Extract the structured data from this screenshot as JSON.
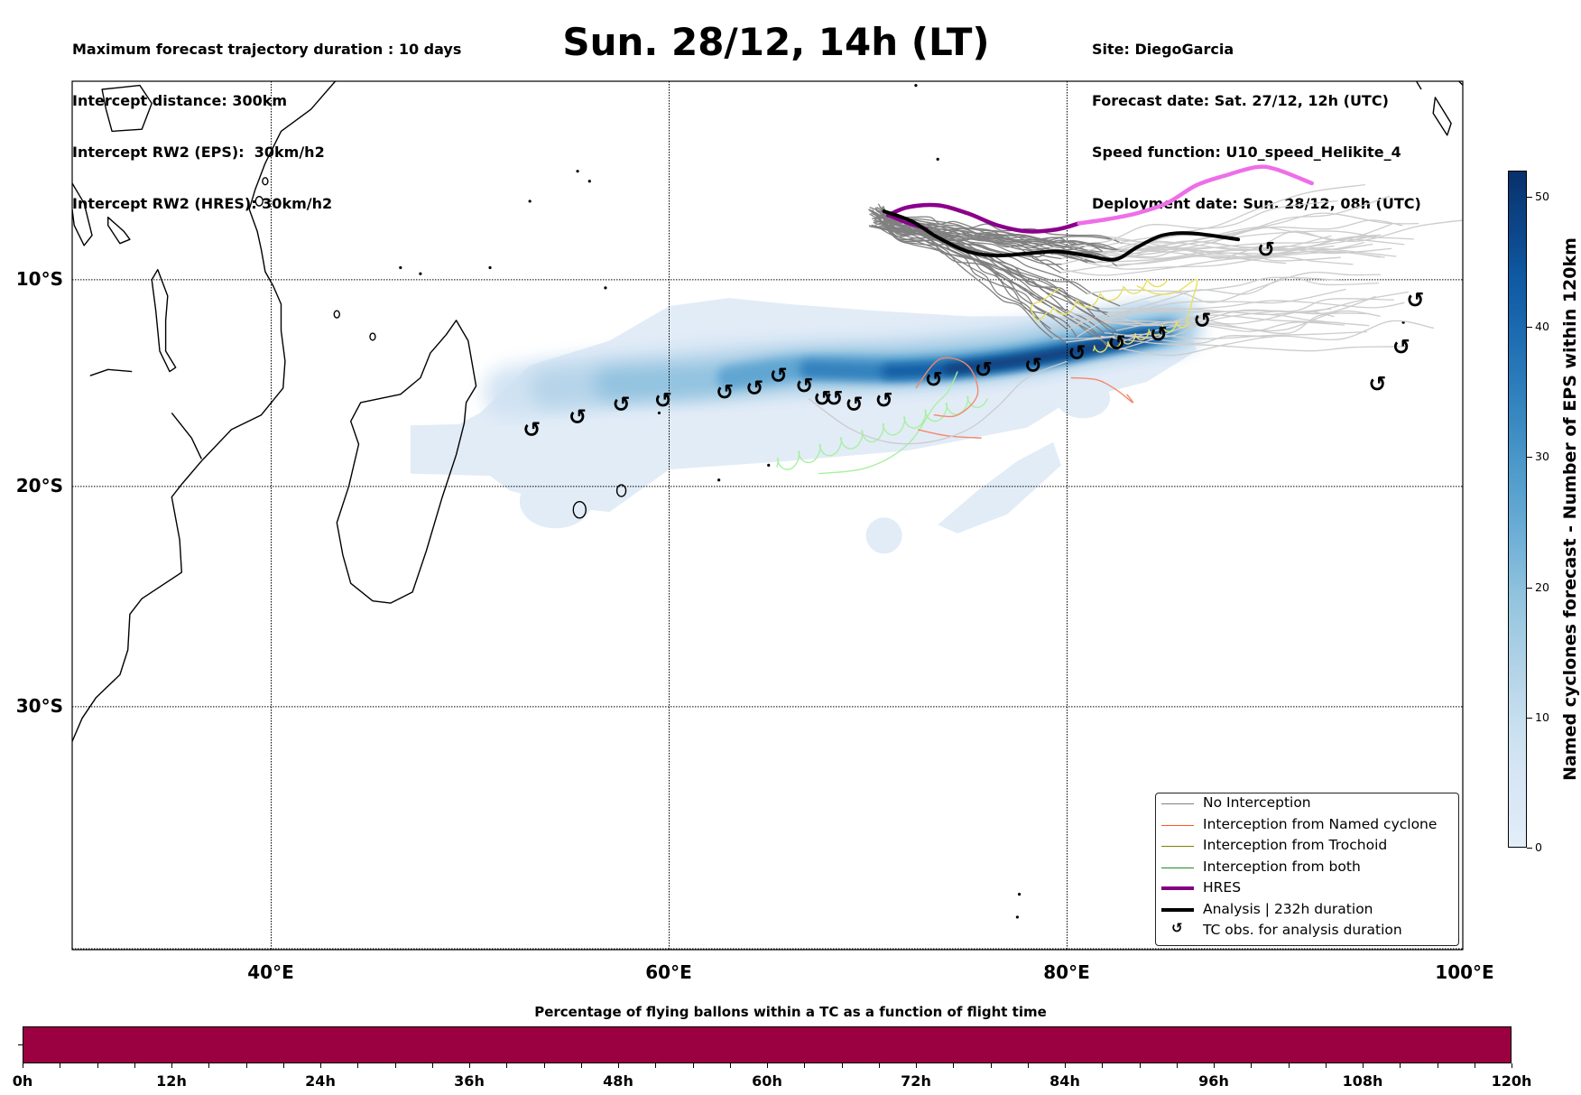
{
  "header": {
    "left_lines": [
      "Maximum forecast trajectory duration : 10 days",
      "Intercept distance: 300km",
      "Intercept RW2 (EPS):  30km/h2",
      "Intercept RW2 (HRES): 30km/h2"
    ],
    "title": "Sun. 28/12, 14h (LT)",
    "right_lines": [
      "Site: DiegoGarcia",
      "Forecast date: Sat. 27/12, 12h (UTC)",
      "Speed function: U10_speed_Helikite_4",
      "Deployment date: Sun. 28/12, 08h (UTC)"
    ]
  },
  "map": {
    "lon_range": [
      30,
      100
    ],
    "lat_range": [
      0,
      -40
    ],
    "lat_ticks": [
      {
        "value": -10,
        "label": "10°S"
      },
      {
        "value": -20,
        "label": "20°S"
      },
      {
        "value": -30,
        "label": "30°S"
      }
    ],
    "lon_ticks": [
      {
        "value": 40,
        "label": "40°E"
      },
      {
        "value": 60,
        "label": "60°E"
      },
      {
        "value": 80,
        "label": "80°E"
      },
      {
        "value": 100,
        "label": "100°E"
      }
    ],
    "colors": {
      "no_interception": "#808080",
      "no_interception_late": "#cccccc",
      "named_cyclone": "#f4886a",
      "trochoid": "#e8e060",
      "both": "#a8f0a0",
      "hres": "#8b008b",
      "hres_late": "#ee6ee8",
      "analysis": "#000000",
      "coast": "#000000"
    }
  },
  "legend": {
    "items": [
      {
        "label": "No Interception",
        "color": "#808080",
        "style": "thin"
      },
      {
        "label": "Interception from Named cyclone",
        "color": "#ff5722",
        "style": "thin"
      },
      {
        "label": "Interception from Trochoid",
        "color": "#808000",
        "style": "thin"
      },
      {
        "label": "Interception from both",
        "color": "#228b22",
        "style": "thin"
      },
      {
        "label": "HRES",
        "color": "#800080",
        "style": "thick"
      },
      {
        "label": "Analysis | 232h duration",
        "color": "#000000",
        "style": "thick"
      },
      {
        "label": "TC obs. for analysis duration",
        "color": "#000000",
        "style": "marker",
        "icon": "↺"
      }
    ]
  },
  "colorbar": {
    "title": "Named cyclones forecast - Number of EPS within 120km",
    "min": 0,
    "max": 52,
    "ticks": [
      "0",
      "10",
      "20",
      "30",
      "40",
      "50"
    ],
    "color_low": "#e3eef9",
    "color_high": "#08306b"
  },
  "pct_bar": {
    "title": "Percentage of flying ballons within a TC as a function of flight time",
    "color": "#9b0040",
    "range_h": [
      0,
      120
    ],
    "ticks": [
      "0h",
      "12h",
      "24h",
      "36h",
      "48h",
      "60h",
      "72h",
      "84h",
      "96h",
      "108h",
      "120h"
    ],
    "minor_step_h": 3
  },
  "chart_data": {
    "type": "map",
    "tc_obs": [
      [
        53.1,
        -17.3
      ],
      [
        55.4,
        -16.7
      ],
      [
        57.6,
        -16.1
      ],
      [
        59.7,
        -15.9
      ],
      [
        62.8,
        -15.5
      ],
      [
        64.3,
        -15.3
      ],
      [
        65.5,
        -14.7
      ],
      [
        66.8,
        -15.2
      ],
      [
        67.7,
        -15.8
      ],
      [
        68.3,
        -15.8
      ],
      [
        69.3,
        -16.1
      ],
      [
        70.8,
        -15.9
      ],
      [
        73.3,
        -14.9
      ],
      [
        75.8,
        -14.4
      ],
      [
        78.3,
        -14.2
      ],
      [
        80.5,
        -13.6
      ],
      [
        82.5,
        -13.1
      ],
      [
        84.6,
        -12.7
      ],
      [
        86.8,
        -12.0
      ],
      [
        90.0,
        -8.5
      ],
      [
        95.6,
        -15.1
      ],
      [
        96.8,
        -13.3
      ],
      [
        97.5,
        -11.0
      ]
    ],
    "hres_track": [
      [
        71.0,
        -6.8
      ],
      [
        72.0,
        -6.4
      ],
      [
        73.5,
        -6.3
      ],
      [
        75.0,
        -6.7
      ],
      [
        76.5,
        -7.3
      ],
      [
        78.0,
        -7.6
      ],
      [
        79.5,
        -7.5
      ],
      [
        80.6,
        -7.2
      ],
      [
        82.0,
        -7.0
      ],
      [
        83.5,
        -6.7
      ],
      [
        85.0,
        -6.2
      ],
      [
        86.5,
        -5.3
      ],
      [
        88.0,
        -4.8
      ],
      [
        89.5,
        -4.4
      ],
      [
        90.5,
        -4.5
      ],
      [
        92.3,
        -5.2
      ]
    ],
    "analysis_track": [
      [
        70.8,
        -6.6
      ],
      [
        72.2,
        -7.1
      ],
      [
        73.5,
        -7.9
      ],
      [
        75.0,
        -8.6
      ],
      [
        76.5,
        -8.8
      ],
      [
        78.0,
        -8.7
      ],
      [
        79.5,
        -8.6
      ],
      [
        81.0,
        -8.8
      ],
      [
        82.4,
        -9.0
      ],
      [
        83.5,
        -8.4
      ],
      [
        84.8,
        -7.8
      ],
      [
        86.3,
        -7.7
      ],
      [
        88.6,
        -8.0
      ]
    ],
    "density_core": [
      [
        52,
        -17.5
      ],
      [
        60,
        -15.5
      ],
      [
        68,
        -14.5
      ],
      [
        75,
        -13.8
      ],
      [
        80,
        -13.0
      ],
      [
        84,
        -12.5
      ],
      [
        86,
        -12.2
      ]
    ]
  }
}
